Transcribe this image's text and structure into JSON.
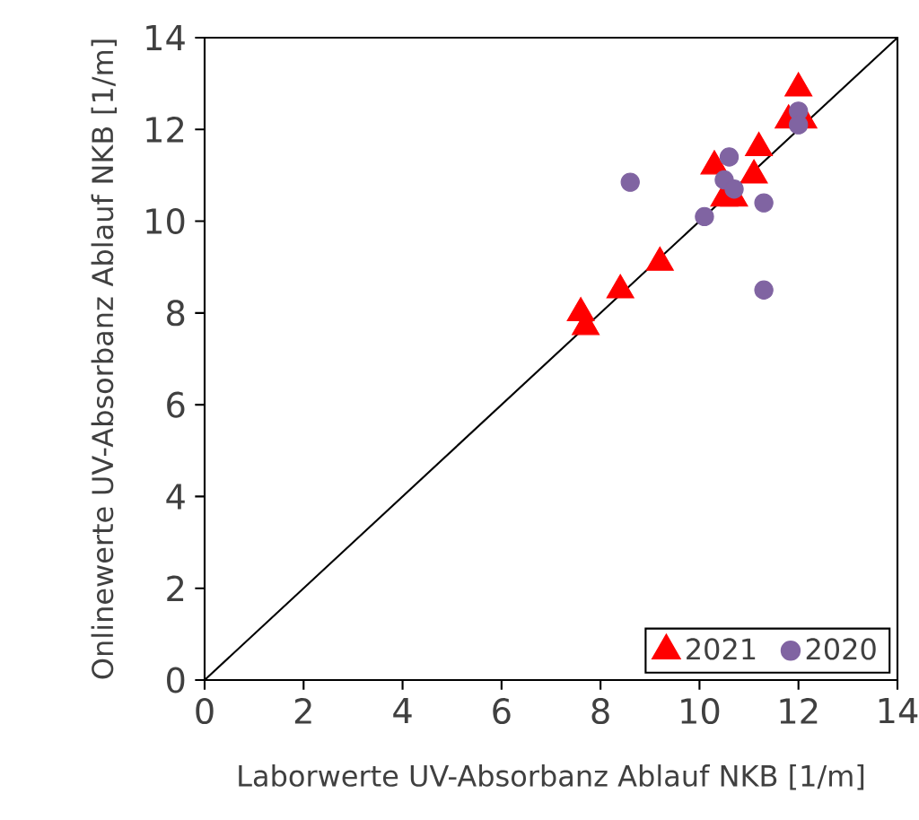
{
  "chart_data": {
    "type": "scatter",
    "xlabel": "Laborwerte UV-Absorbanz Ablauf NKB  [1/m]",
    "ylabel": "Onlinewerte UV-Absorbanz Ablauf NKB [1/m]",
    "xlim": [
      0,
      14
    ],
    "ylim": [
      0,
      14
    ],
    "xticks": [
      0,
      2,
      4,
      6,
      8,
      10,
      12,
      14
    ],
    "yticks": [
      0,
      2,
      4,
      6,
      8,
      10,
      12,
      14
    ],
    "grid": false,
    "legend": "bottom right",
    "series": [
      {
        "name": "2021",
        "color": "#ff0000",
        "marker": "triangle",
        "x": [
          7.6,
          7.7,
          8.4,
          9.2,
          10.3,
          10.5,
          10.7,
          11.1,
          11.2,
          11.8,
          12.0,
          12.1
        ],
        "values": [
          8.0,
          7.7,
          8.5,
          9.1,
          11.2,
          10.5,
          10.5,
          11.0,
          11.6,
          12.2,
          12.9,
          12.2
        ]
      },
      {
        "name": "2020",
        "color": "#8064a2",
        "marker": "circle",
        "x": [
          8.6,
          10.1,
          10.6,
          10.5,
          10.7,
          11.3,
          11.3,
          12.0,
          12.0
        ],
        "values": [
          10.85,
          10.1,
          11.4,
          10.9,
          10.7,
          10.4,
          8.5,
          12.4,
          12.1
        ]
      },
      {
        "type": "line",
        "color": "#000000",
        "marker": "none",
        "x": [
          0,
          14
        ],
        "values": [
          0,
          14
        ]
      }
    ]
  }
}
